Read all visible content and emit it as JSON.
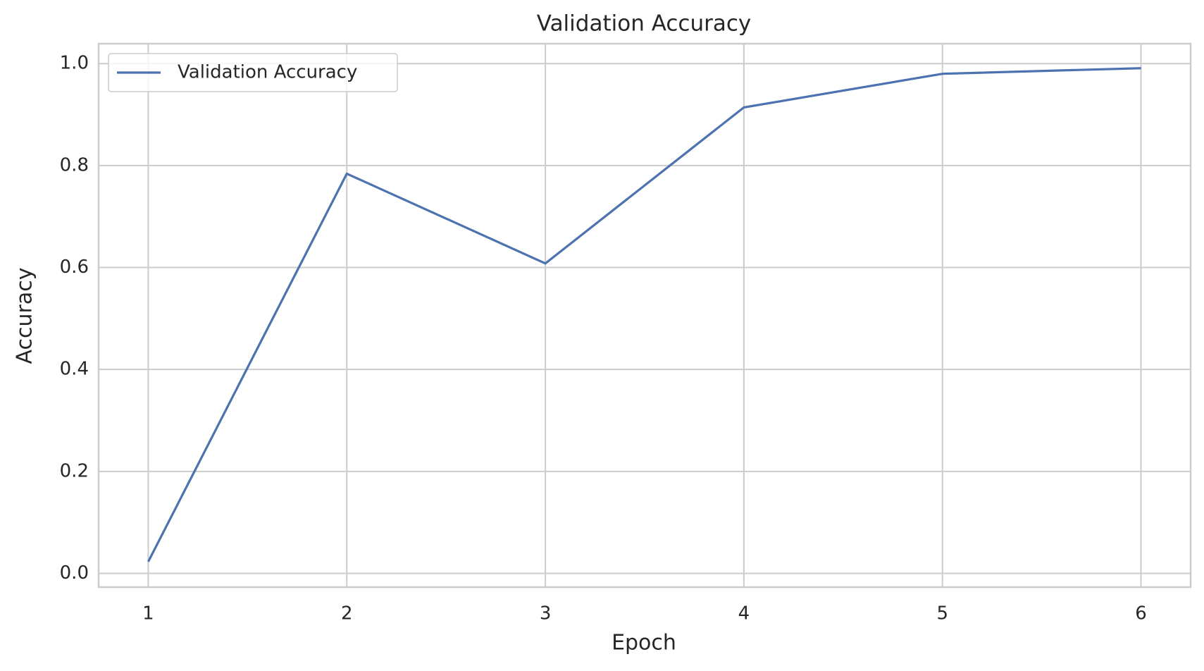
{
  "chart_data": {
    "type": "line",
    "title": "Validation Accuracy",
    "x_label": "Epoch",
    "y_label": "Accuracy",
    "x": [
      1,
      2,
      3,
      4,
      5,
      6
    ],
    "series": [
      {
        "name": "Validation Accuracy",
        "color": "#4c72b0",
        "values": [
          0.023,
          0.784,
          0.608,
          0.914,
          0.98,
          0.991
        ]
      }
    ],
    "xlim": [
      0.75,
      6.25
    ],
    "ylim": [
      -0.027,
      1.039
    ],
    "xticks": [
      1,
      2,
      3,
      4,
      5,
      6
    ],
    "yticks": [
      {
        "value": 0,
        "label": "0.0"
      },
      0.2,
      0.4,
      0.6,
      0.8,
      {
        "value": 1,
        "label": "1.0"
      }
    ],
    "grid": true,
    "legend": "upper left"
  }
}
